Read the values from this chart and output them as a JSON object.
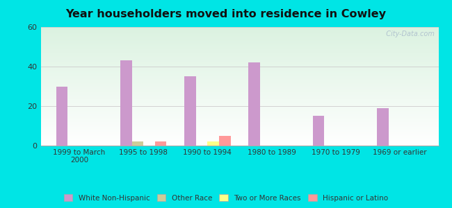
{
  "title": "Year householders moved into residence in Cowley",
  "categories": [
    "1999 to March\n2000",
    "1995 to 1998",
    "1990 to 1994",
    "1980 to 1989",
    "1970 to 1979",
    "1969 or earlier"
  ],
  "series": {
    "White Non-Hispanic": [
      30,
      43,
      35,
      42,
      15,
      19
    ],
    "Other Race": [
      0,
      2,
      0,
      0,
      0,
      0
    ],
    "Two or More Races": [
      0,
      0,
      2,
      0,
      0,
      0
    ],
    "Hispanic or Latino": [
      0,
      2,
      5,
      0,
      0,
      0
    ]
  },
  "colors": {
    "White Non-Hispanic": "#cc99cc",
    "Other Race": "#cccc99",
    "Two or More Races": "#ffff88",
    "Hispanic or Latino": "#ff9999"
  },
  "ylim": [
    0,
    60
  ],
  "yticks": [
    0,
    20,
    40,
    60
  ],
  "bar_width": 0.18,
  "outer_bg": "#00e5e5",
  "watermark": "  City-Data.com"
}
